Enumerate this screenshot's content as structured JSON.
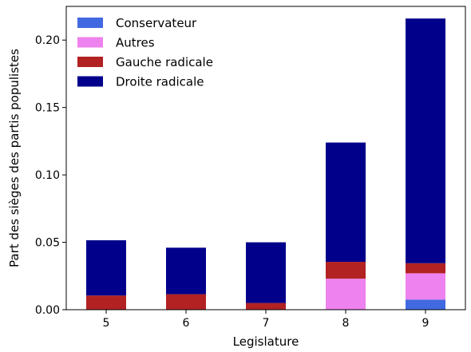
{
  "chart_data": {
    "type": "bar",
    "stacked": true,
    "xlabel": "Legislature",
    "ylabel": "Part des sièges des partis populistes",
    "categories": [
      "5",
      "6",
      "7",
      "8",
      "9"
    ],
    "ylim": [
      0,
      0.225
    ],
    "yticks": [
      0.0,
      0.05,
      0.1,
      0.15,
      0.2
    ],
    "ytick_labels": [
      "0.00",
      "0.05",
      "0.10",
      "0.15",
      "0.20"
    ],
    "grid": false,
    "legend_position": "top-left",
    "series": [
      {
        "name": "Conservateur",
        "color": "#4169e1",
        "values": [
          0.0,
          0.0,
          0.0,
          0.0,
          0.0075
        ]
      },
      {
        "name": "Autres",
        "color": "#ee82ee",
        "values": [
          0.0,
          0.0,
          0.0,
          0.023,
          0.0195
        ]
      },
      {
        "name": "Gauche radicale",
        "color": "#b22222",
        "values": [
          0.0105,
          0.0115,
          0.005,
          0.0125,
          0.0075
        ]
      },
      {
        "name": "Droite radicale",
        "color": "#00008b",
        "values": [
          0.041,
          0.0345,
          0.045,
          0.0885,
          0.1815
        ]
      }
    ]
  }
}
